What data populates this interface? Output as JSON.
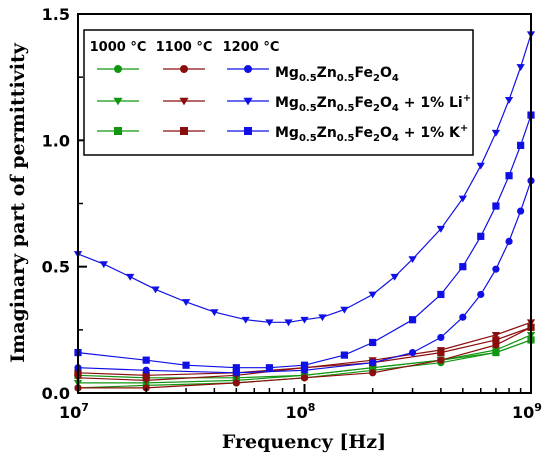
{
  "chart_data": {
    "type": "scatter",
    "xlabel": "Frequency [Hz]",
    "ylabel": "Imaginary part of permittivity",
    "xscale": "log",
    "xlim": [
      10000000,
      1000000000
    ],
    "ylim": [
      0,
      1.5
    ],
    "x_ticks": [
      {
        "value": 10000000,
        "base": "10",
        "exp": "7"
      },
      {
        "value": 100000000,
        "base": "10",
        "exp": "8"
      },
      {
        "value": 1000000000,
        "base": "10",
        "exp": "9"
      }
    ],
    "y_ticks": [
      {
        "value": 0,
        "label": "0.0"
      },
      {
        "value": 0.5,
        "label": "0.5"
      },
      {
        "value": 1.0,
        "label": "1.0"
      },
      {
        "value": 1.5,
        "label": "1.5"
      }
    ],
    "grid": false,
    "legend_position": "top-left",
    "legend_columns": [
      "1000 °C",
      "1100 °C",
      "1200 °C"
    ],
    "legend_rows": [
      {
        "marker": "circle",
        "label": {
          "pre": "Mg",
          "s1": "0.5",
          "mid": "Zn",
          "s2": "0.5",
          "mid2": "Fe",
          "s3": "2",
          "mid3": "O",
          "s4": "4",
          "tail": "",
          "sup": ""
        }
      },
      {
        "marker": "triangle-down",
        "label": {
          "pre": "Mg",
          "s1": "0.5",
          "mid": "Zn",
          "s2": "0.5",
          "mid2": "Fe",
          "s3": "2",
          "mid3": "O",
          "s4": "4",
          "tail": " + 1% Li",
          "sup": "+"
        }
      },
      {
        "marker": "square",
        "label": {
          "pre": "Mg",
          "s1": "0.5",
          "mid": "Zn",
          "s2": "0.5",
          "mid2": "Fe",
          "s3": "2",
          "mid3": "O",
          "s4": "4",
          "tail": " + 1% K",
          "sup": "+"
        }
      }
    ],
    "colors": {
      "1000": "#129612",
      "1100": "#8b0e0e",
      "1200": "#1010e6"
    },
    "series": [
      {
        "temperature": "1000",
        "marker": "circle",
        "x": [
          10000000.0,
          20000000.0,
          50000000.0,
          100000000.0,
          200000000.0,
          400000000.0,
          700000000.0,
          1000000000.0
        ],
        "y": [
          0.02,
          0.03,
          0.04,
          0.06,
          0.09,
          0.12,
          0.16,
          0.21
        ]
      },
      {
        "temperature": "1000",
        "marker": "triangle-down",
        "x": [
          10000000.0,
          20000000.0,
          50000000.0,
          100000000.0,
          200000000.0,
          400000000.0,
          700000000.0,
          1000000000.0
        ],
        "y": [
          0.04,
          0.04,
          0.05,
          0.07,
          0.1,
          0.13,
          0.17,
          0.23
        ]
      },
      {
        "temperature": "1000",
        "marker": "square",
        "x": [
          10000000.0,
          20000000.0,
          50000000.0,
          100000000.0,
          200000000.0,
          400000000.0,
          700000000.0,
          1000000000.0
        ],
        "y": [
          0.07,
          0.06,
          0.06,
          0.07,
          0.1,
          0.13,
          0.16,
          0.21
        ]
      },
      {
        "temperature": "1100",
        "marker": "circle",
        "x": [
          10000000.0,
          20000000.0,
          50000000.0,
          100000000.0,
          200000000.0,
          400000000.0,
          700000000.0,
          1000000000.0
        ],
        "y": [
          0.02,
          0.02,
          0.04,
          0.06,
          0.08,
          0.13,
          0.19,
          0.26
        ]
      },
      {
        "temperature": "1100",
        "marker": "triangle-down",
        "x": [
          10000000.0,
          20000000.0,
          50000000.0,
          100000000.0,
          200000000.0,
          400000000.0,
          700000000.0,
          1000000000.0
        ],
        "y": [
          0.06,
          0.05,
          0.07,
          0.1,
          0.13,
          0.17,
          0.23,
          0.28
        ]
      },
      {
        "temperature": "1100",
        "marker": "square",
        "x": [
          10000000.0,
          20000000.0,
          50000000.0,
          100000000.0,
          200000000.0,
          400000000.0,
          700000000.0,
          1000000000.0
        ],
        "y": [
          0.08,
          0.07,
          0.08,
          0.1,
          0.12,
          0.16,
          0.21,
          0.26
        ]
      },
      {
        "temperature": "1200",
        "marker": "circle",
        "x": [
          10000000.0,
          20000000.0,
          50000000.0,
          100000000.0,
          200000000.0,
          300000000.0,
          400000000.0,
          500000000.0,
          600000000.0,
          700000000.0,
          800000000.0,
          900000000.0,
          1000000000.0
        ],
        "y": [
          0.1,
          0.09,
          0.08,
          0.09,
          0.12,
          0.16,
          0.22,
          0.3,
          0.39,
          0.49,
          0.6,
          0.72,
          0.84
        ]
      },
      {
        "temperature": "1200",
        "marker": "triangle-down",
        "x": [
          10000000.0,
          13000000.0,
          17000000.0,
          22000000.0,
          30000000.0,
          40000000.0,
          55000000.0,
          70000000.0,
          85000000.0,
          100000000.0,
          120000000.0,
          150000000.0,
          200000000.0,
          250000000.0,
          300000000.0,
          400000000.0,
          500000000.0,
          600000000.0,
          700000000.0,
          800000000.0,
          900000000.0,
          1000000000.0
        ],
        "y": [
          0.55,
          0.51,
          0.46,
          0.41,
          0.36,
          0.32,
          0.29,
          0.28,
          0.28,
          0.29,
          0.3,
          0.33,
          0.39,
          0.46,
          0.53,
          0.65,
          0.77,
          0.9,
          1.03,
          1.16,
          1.29,
          1.42
        ]
      },
      {
        "temperature": "1200",
        "marker": "square",
        "x": [
          10000000.0,
          20000000.0,
          30000000.0,
          50000000.0,
          70000000.0,
          100000000.0,
          150000000.0,
          200000000.0,
          300000000.0,
          400000000.0,
          500000000.0,
          600000000.0,
          700000000.0,
          800000000.0,
          900000000.0,
          1000000000.0
        ],
        "y": [
          0.16,
          0.13,
          0.11,
          0.1,
          0.1,
          0.11,
          0.15,
          0.2,
          0.29,
          0.39,
          0.5,
          0.62,
          0.74,
          0.86,
          0.98,
          1.1
        ]
      }
    ]
  }
}
